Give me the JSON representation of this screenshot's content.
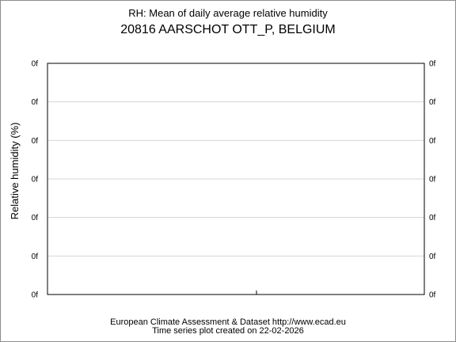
{
  "chart_data": {
    "type": "line",
    "title": "RH: Mean of daily average relative humidity",
    "subtitle": "20816 AARSCHOT OTT_P, BELGIUM",
    "xlabel": "",
    "ylabel": "Relative humidity (%)",
    "y_tick_labels": [
      "0f",
      "0f",
      "0f",
      "0f",
      "0f",
      "0f",
      "0f"
    ],
    "series": [],
    "grid": true,
    "legend": "none"
  },
  "footer": {
    "line1": "European Climate Assessment & Dataset  http://www.ecad.eu",
    "line2": "Time series plot created on 22-02-2026"
  }
}
